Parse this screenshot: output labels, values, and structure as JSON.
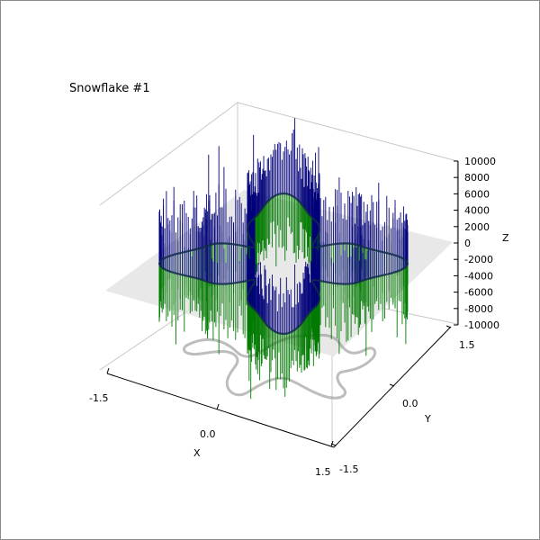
{
  "chart_data": {
    "type": "3d-line",
    "title": "Snowflake #1",
    "xlabel": "X",
    "ylabel": "Y",
    "zlabel": "Z",
    "xlim": [
      -1.5,
      1.5
    ],
    "ylim": [
      -1.5,
      1.5
    ],
    "zlim": [
      -10000,
      10000
    ],
    "x_ticks": [
      "-1.5",
      "0.0",
      "1.5"
    ],
    "y_ticks": [
      "-1.5",
      "0.0",
      "1.5"
    ],
    "z_ticks": [
      "10000",
      "8000",
      "6000",
      "4000",
      "2000",
      "0",
      "-2000",
      "-4000",
      "-6000",
      "-8000",
      "-10000"
    ],
    "grid": true,
    "series": [
      {
        "color": "#00007a",
        "values_sign": "positive"
      },
      {
        "color": "#007a00",
        "values_sign": "negative"
      }
    ],
    "colors": {
      "plane": "#e6e6e6",
      "shadow": "#9a9a9a"
    }
  }
}
